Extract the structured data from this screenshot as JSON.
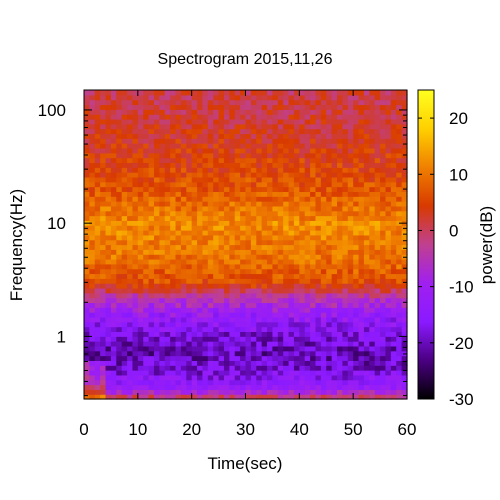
{
  "chart_data": {
    "type": "heatmap",
    "title": "Spectrogram 2015,11,26",
    "xlabel": "Time(sec)",
    "ylabel": "Frequency(Hz)",
    "colorbar_label": "power(dB)",
    "x_range": [
      0,
      60
    ],
    "y_range": [
      0.28,
      150
    ],
    "y_scale": "log",
    "x_ticks": [
      0,
      10,
      20,
      30,
      40,
      50,
      60
    ],
    "x_tick_labels": [
      "0",
      "10",
      "20",
      "30",
      "40",
      "50",
      "60"
    ],
    "y_ticks": [
      1,
      10,
      100
    ],
    "y_tick_labels": [
      "1",
      "10",
      "100"
    ],
    "color_range": [
      -30,
      25
    ],
    "colorbar_ticks": [
      20,
      10,
      0,
      -10,
      -20,
      -30
    ],
    "colorbar_tick_labels": [
      "20",
      "10",
      "0",
      "-10",
      "-20",
      "-30"
    ],
    "colormap": [
      "#000000",
      "#4b0082",
      "#8a1aff",
      "#a020f0",
      "#c04090",
      "#d83a00",
      "#f08000",
      "#ffd000",
      "#ffff20"
    ],
    "power_profile": [
      {
        "freq": 0.28,
        "power": 2
      },
      {
        "freq": 0.35,
        "power": -12
      },
      {
        "freq": 0.5,
        "power": -18
      },
      {
        "freq": 0.7,
        "power": -20
      },
      {
        "freq": 1.0,
        "power": -18
      },
      {
        "freq": 1.5,
        "power": -13
      },
      {
        "freq": 2.2,
        "power": -5
      },
      {
        "freq": 3.0,
        "power": 6
      },
      {
        "freq": 5.0,
        "power": 10
      },
      {
        "freq": 10,
        "power": 12
      },
      {
        "freq": 20,
        "power": 7
      },
      {
        "freq": 40,
        "power": 4
      },
      {
        "freq": 80,
        "power": 2
      },
      {
        "freq": 150,
        "power": 1
      }
    ],
    "grid": false
  }
}
